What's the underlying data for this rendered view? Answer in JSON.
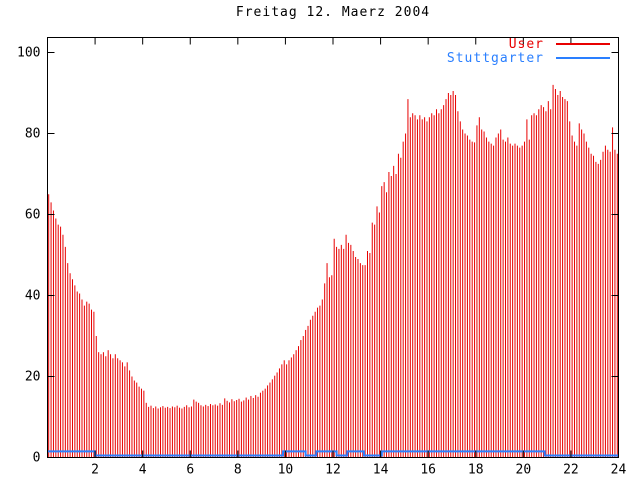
{
  "window": {
    "title": "Freitag 12. Maerz 2004"
  },
  "colors": {
    "background": "#ffffff",
    "axis": "#000000",
    "user_red": "#e80000",
    "stuttgarter_blue": "#2a7fff"
  },
  "legend": {
    "entries": [
      {
        "label": "User",
        "color": "#e80000"
      },
      {
        "label": "Stuttgarter",
        "color": "#2a7fff"
      }
    ]
  },
  "chart_data": {
    "type": "bar",
    "subtype": "impulses",
    "title": "Freitag 12. Maerz 2004",
    "xlabel": "",
    "ylabel": "",
    "xlim": [
      0,
      24
    ],
    "ylim": [
      0,
      100
    ],
    "xticks": [
      2,
      4,
      6,
      8,
      10,
      12,
      14,
      16,
      18,
      20,
      22,
      24
    ],
    "yticks": [
      0,
      20,
      40,
      60,
      80,
      100
    ],
    "grid": false,
    "legend_position": "top-right-inside",
    "sample_interval_hours": 0.1,
    "series": [
      {
        "name": "User",
        "style": "impulses",
        "color": "#e80000",
        "values": [
          65,
          63,
          61,
          59,
          57.5,
          57,
          55,
          52,
          48,
          45.5,
          44,
          42.5,
          41,
          40.5,
          39,
          37.5,
          38.5,
          38,
          36.5,
          36,
          30,
          26,
          25.5,
          26,
          25,
          26.5,
          25.5,
          24.5,
          25.5,
          24.5,
          24,
          23.5,
          22.5,
          23.5,
          21.5,
          20,
          19,
          18.5,
          17.5,
          17,
          16.5,
          13.5,
          12.5,
          12.8,
          12.2,
          12.6,
          12.1,
          12.4,
          12.7,
          12.3,
          12.5,
          12.2,
          12.6,
          12.4,
          12.8,
          12.3,
          12.1,
          12.5,
          12.9,
          12.4,
          12.6,
          14.3,
          13.8,
          13.5,
          12.9,
          12.6,
          13,
          12.7,
          13.2,
          12.9,
          13.1,
          12.8,
          13.4,
          13,
          14.6,
          14,
          13.6,
          14.4,
          13.9,
          14.2,
          14.5,
          13.8,
          14.1,
          14.8,
          14.3,
          15.2,
          14.7,
          15.4,
          15,
          16,
          16.5,
          17,
          17.8,
          18.5,
          19.3,
          20.2,
          21,
          22,
          23,
          24,
          23,
          24,
          24.7,
          25.5,
          26.5,
          27.5,
          29,
          30,
          31.5,
          32.5,
          34,
          35,
          36,
          37,
          37.5,
          39,
          43,
          48,
          44.5,
          45,
          54,
          52,
          51.5,
          52.5,
          51.5,
          55,
          53,
          52.5,
          51,
          49.5,
          49,
          48,
          47.5,
          47.5,
          51,
          50.5,
          58,
          57.5,
          62,
          60.5,
          67,
          68,
          65.5,
          70.5,
          69.5,
          72,
          70,
          75,
          74,
          78,
          80,
          88.5,
          84,
          85,
          84.5,
          83.5,
          84.5,
          83.5,
          84,
          83,
          84,
          85,
          84.5,
          86,
          85,
          86,
          87,
          88.5,
          90,
          89.5,
          90.5,
          89.5,
          85.5,
          83,
          81,
          80,
          79.5,
          78.5,
          78,
          77.8,
          82,
          84,
          81,
          80.5,
          79,
          78,
          77.5,
          77,
          79,
          80,
          81,
          78.5,
          78,
          79,
          77.5,
          77,
          77.5,
          77,
          76.5,
          77,
          78,
          83.5,
          78.5,
          84.5,
          85,
          84.5,
          86,
          87,
          86.5,
          85.5,
          88,
          86,
          92,
          91,
          89.5,
          90.5,
          89,
          88.5,
          88,
          83,
          79.5,
          78,
          77,
          82.5,
          81,
          80,
          78,
          76.5,
          75,
          74.5,
          73,
          72.5,
          73.5,
          75.5,
          77,
          76,
          75.5,
          81.5,
          76,
          75
        ]
      },
      {
        "name": "Stuttgarter",
        "style": "steps",
        "color": "#2a7fff",
        "segments": [
          [
            0,
            2,
            1.5
          ],
          [
            2,
            9.9,
            0.5
          ],
          [
            9.9,
            10.85,
            1.5
          ],
          [
            10.85,
            11.3,
            0.5
          ],
          [
            11.3,
            12.15,
            1.5
          ],
          [
            12.15,
            12.6,
            0.5
          ],
          [
            12.6,
            13.3,
            1.5
          ],
          [
            13.3,
            14.05,
            0.5
          ],
          [
            14.05,
            20.9,
            1.5
          ],
          [
            20.9,
            24,
            0.5
          ]
        ]
      }
    ]
  }
}
